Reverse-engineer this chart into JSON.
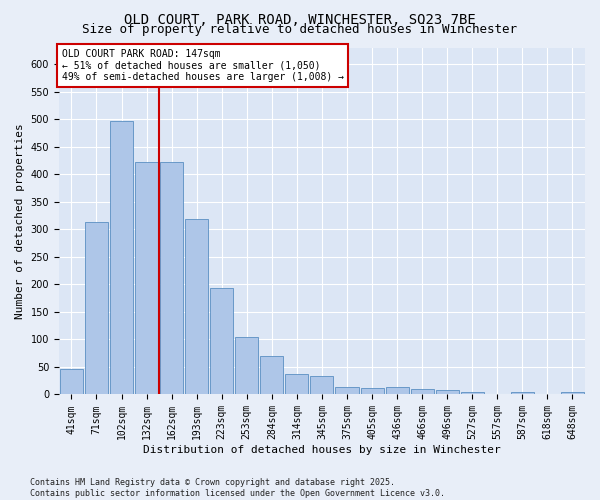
{
  "title": "OLD COURT, PARK ROAD, WINCHESTER, SO23 7BE",
  "subtitle": "Size of property relative to detached houses in Winchester",
  "xlabel": "Distribution of detached houses by size in Winchester",
  "ylabel": "Number of detached properties",
  "categories": [
    "41sqm",
    "71sqm",
    "102sqm",
    "132sqm",
    "162sqm",
    "193sqm",
    "223sqm",
    "253sqm",
    "284sqm",
    "314sqm",
    "345sqm",
    "375sqm",
    "405sqm",
    "436sqm",
    "466sqm",
    "496sqm",
    "527sqm",
    "557sqm",
    "587sqm",
    "618sqm",
    "648sqm"
  ],
  "values": [
    46,
    313,
    497,
    423,
    422,
    319,
    194,
    105,
    70,
    38,
    33,
    13,
    12,
    14,
    10,
    8,
    5,
    0,
    4,
    0,
    4
  ],
  "bar_color": "#aec6e8",
  "bar_edge_color": "#5a8fc2",
  "vline_color": "#cc0000",
  "vline_x_index": 3.5,
  "annotation_text": "OLD COURT PARK ROAD: 147sqm\n← 51% of detached houses are smaller (1,050)\n49% of semi-detached houses are larger (1,008) →",
  "annotation_box_color": "#ffffff",
  "annotation_box_edge_color": "#cc0000",
  "ylim": [
    0,
    630
  ],
  "yticks": [
    0,
    50,
    100,
    150,
    200,
    250,
    300,
    350,
    400,
    450,
    500,
    550,
    600
  ],
  "bg_color": "#e8eef8",
  "plot_bg_color": "#dce6f5",
  "grid_color": "#ffffff",
  "footer": "Contains HM Land Registry data © Crown copyright and database right 2025.\nContains public sector information licensed under the Open Government Licence v3.0.",
  "title_fontsize": 10,
  "subtitle_fontsize": 9,
  "xlabel_fontsize": 8,
  "ylabel_fontsize": 8,
  "tick_fontsize": 7,
  "annotation_fontsize": 7
}
